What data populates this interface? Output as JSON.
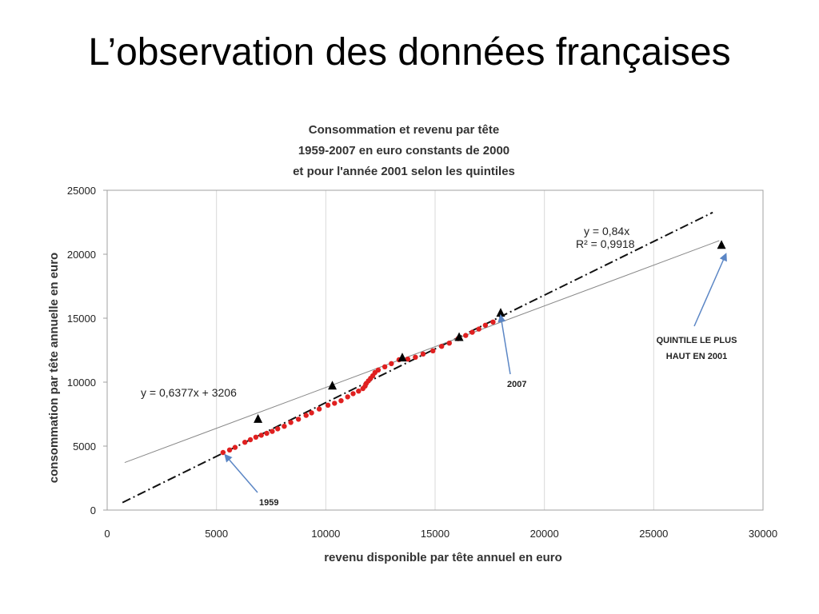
{
  "slide": {
    "title": "L’observation des données françaises"
  },
  "chart_data": {
    "type": "scatter",
    "title_lines": [
      "Consommation et revenu par tête",
      "1959-2007 en euro constants de 2000",
      "et pour l'année 2001 selon les quintiles"
    ],
    "xlabel": "revenu  disponible par tête annuel en euro",
    "ylabel": "consommation par tête annuelle en euro",
    "xlim": [
      0,
      30000
    ],
    "ylim": [
      0,
      25000
    ],
    "x_ticks": [
      "0",
      "5000",
      "10000",
      "15000",
      "20000",
      "25000",
      "30000"
    ],
    "y_ticks": [
      "0",
      "5000",
      "10000",
      "15000",
      "20000",
      "25000"
    ],
    "grid": "vertical",
    "series": [
      {
        "color": "#e02020",
        "marker": "circle",
        "points": [
          [
            5300,
            4500
          ],
          [
            5600,
            4700
          ],
          [
            5850,
            4900
          ],
          [
            6300,
            5300
          ],
          [
            6550,
            5500
          ],
          [
            6800,
            5700
          ],
          [
            7050,
            5850
          ],
          [
            7300,
            6000
          ],
          [
            7550,
            6150
          ],
          [
            7800,
            6350
          ],
          [
            8100,
            6550
          ],
          [
            8400,
            6850
          ],
          [
            8750,
            7100
          ],
          [
            9100,
            7400
          ],
          [
            9350,
            7600
          ],
          [
            9700,
            7900
          ],
          [
            10100,
            8200
          ],
          [
            10400,
            8350
          ],
          [
            10700,
            8550
          ],
          [
            11000,
            8850
          ],
          [
            11250,
            9100
          ],
          [
            11500,
            9300
          ],
          [
            11700,
            9500
          ],
          [
            11800,
            9700
          ],
          [
            11850,
            9900
          ],
          [
            11950,
            10100
          ],
          [
            12050,
            10300
          ],
          [
            12150,
            10500
          ],
          [
            12250,
            10750
          ],
          [
            12400,
            10950
          ],
          [
            12700,
            11200
          ],
          [
            13000,
            11450
          ],
          [
            13350,
            11750
          ],
          [
            13750,
            11800
          ],
          [
            14100,
            11950
          ],
          [
            14450,
            12200
          ],
          [
            14900,
            12450
          ],
          [
            15300,
            12800
          ],
          [
            15650,
            13050
          ],
          [
            16050,
            13400
          ],
          [
            16400,
            13650
          ],
          [
            16700,
            13900
          ],
          [
            17000,
            14150
          ],
          [
            17300,
            14450
          ],
          [
            17650,
            14700
          ]
        ]
      },
      {
        "color": "#000000",
        "marker": "triangle",
        "points": [
          [
            6900,
            7100
          ],
          [
            10300,
            9700
          ],
          [
            13500,
            11900
          ],
          [
            16100,
            13500
          ],
          [
            18000,
            15400
          ],
          [
            28100,
            20700
          ]
        ]
      }
    ],
    "trendlines": [
      {
        "equation": "y = 0,84x",
        "r2_label": "R² = 0,9918",
        "x_range": [
          700,
          27700
        ],
        "slope": 0.84,
        "intercept": 0,
        "style": "dash-dot",
        "color": "#111111"
      },
      {
        "equation": "y = 0,6377x + 3206",
        "x_range": [
          800,
          28000
        ],
        "slope": 0.6377,
        "intercept": 3206,
        "style": "solid",
        "color": "#888888"
      }
    ],
    "annotations": [
      {
        "text": "1959",
        "target": [
          5400,
          4300
        ]
      },
      {
        "text": "2007",
        "target": [
          18000,
          15200
        ]
      },
      {
        "text_lines": [
          "QUINTILE LE PLUS",
          "HAUT  EN 2001"
        ],
        "target": [
          28300,
          20000
        ]
      }
    ]
  }
}
